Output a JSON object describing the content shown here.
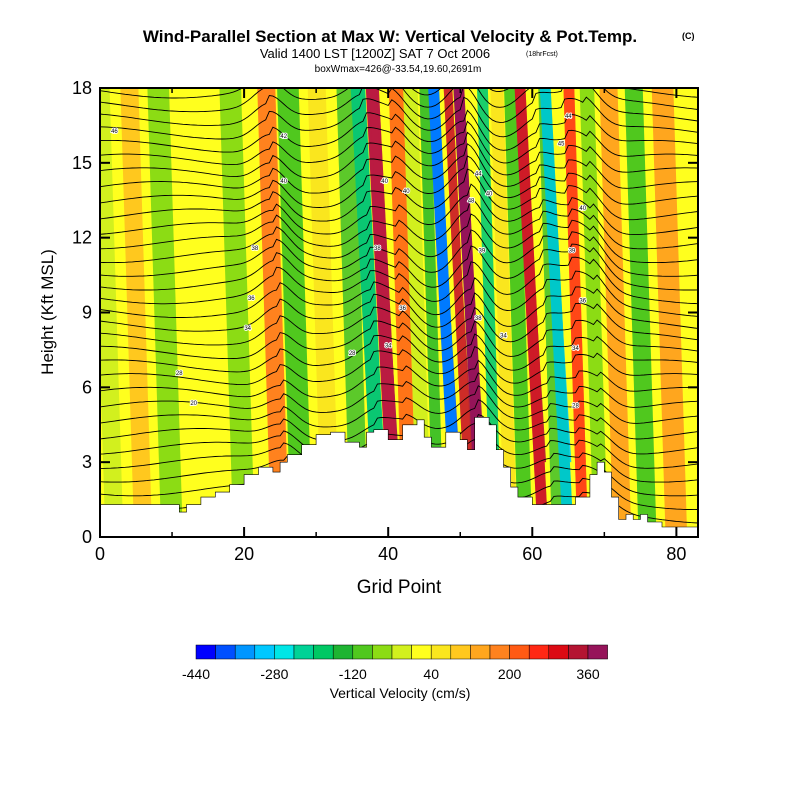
{
  "chart_data": {
    "type": "heatmap",
    "title": "Wind-Parallel Section at Max W: Vertical Velocity & Pot.Temp.",
    "title_unit": "(C)",
    "subtitle": "Valid 1400 LST [1200Z] SAT 7 Oct 2006",
    "subtitle_note": "(18hrFcst)",
    "subtitle2": "boxWmax=426@-33.54,19.60,2691m",
    "xlabel": "Grid Point",
    "ylabel": "Height (Kft MSL)",
    "xlim": [
      0,
      83
    ],
    "ylim": [
      0,
      18
    ],
    "x_ticks": [
      0,
      20,
      40,
      60,
      80
    ],
    "y_ticks": [
      0,
      3,
      6,
      9,
      12,
      15,
      18
    ],
    "terrain_kft": [
      [
        0,
        1.3
      ],
      [
        5,
        1.3
      ],
      [
        10,
        1.3
      ],
      [
        11,
        1.0
      ],
      [
        12,
        1.3
      ],
      [
        14,
        1.6
      ],
      [
        16,
        1.8
      ],
      [
        18,
        2.1
      ],
      [
        20,
        2.5
      ],
      [
        22,
        2.8
      ],
      [
        24,
        2.6
      ],
      [
        25,
        3.0
      ],
      [
        26,
        3.3
      ],
      [
        28,
        3.7
      ],
      [
        30,
        4.1
      ],
      [
        32,
        4.2
      ],
      [
        34,
        3.8
      ],
      [
        36,
        3.6
      ],
      [
        37,
        4.2
      ],
      [
        38,
        4.3
      ],
      [
        40,
        3.9
      ],
      [
        42,
        4.5
      ],
      [
        44,
        4.7
      ],
      [
        45,
        4.0
      ],
      [
        46,
        3.6
      ],
      [
        48,
        4.2
      ],
      [
        50,
        3.9
      ],
      [
        51,
        3.5
      ],
      [
        52,
        4.8
      ],
      [
        54,
        4.5
      ],
      [
        55,
        3.5
      ],
      [
        56,
        2.8
      ],
      [
        57,
        2.0
      ],
      [
        58,
        1.6
      ],
      [
        60,
        1.3
      ],
      [
        62,
        1.3
      ],
      [
        64,
        1.3
      ],
      [
        66,
        1.6
      ],
      [
        68,
        2.5
      ],
      [
        69,
        3.0
      ],
      [
        70,
        2.6
      ],
      [
        71,
        1.6
      ],
      [
        72,
        0.7
      ],
      [
        73,
        0.9
      ],
      [
        74,
        0.7
      ],
      [
        75,
        0.9
      ],
      [
        76,
        0.6
      ],
      [
        78,
        0.4
      ],
      [
        80,
        0.4
      ],
      [
        83,
        0.4
      ]
    ],
    "velocity_bands": [
      {
        "x": 2,
        "w": 2.5,
        "v": -60
      },
      {
        "x": 6,
        "w": 2.5,
        "v": 40
      },
      {
        "x": 10,
        "w": 3,
        "v": -90
      },
      {
        "x": 15,
        "w": 3,
        "v": -40
      },
      {
        "x": 20,
        "w": 3,
        "v": -120
      },
      {
        "x": 25,
        "w": 2.5,
        "v": 150
      },
      {
        "x": 28,
        "w": 3,
        "v": -150
      },
      {
        "x": 32,
        "w": 2.5,
        "v": 30
      },
      {
        "x": 36,
        "w": 2.5,
        "v": -180
      },
      {
        "x": 39,
        "w": 2,
        "v": -280
      },
      {
        "x": 41,
        "w": 1.8,
        "v": 330
      },
      {
        "x": 43,
        "w": 2,
        "v": 190
      },
      {
        "x": 45,
        "w": 2,
        "v": -60
      },
      {
        "x": 47,
        "w": 1.5,
        "v": -200
      },
      {
        "x": 49.5,
        "w": 1.5,
        "v": -440
      },
      {
        "x": 51.5,
        "w": 1.2,
        "v": 280
      },
      {
        "x": 53,
        "w": 1.5,
        "v": 420
      },
      {
        "x": 55,
        "w": 1.5,
        "v": -250
      },
      {
        "x": 57,
        "w": 1.8,
        "v": 20
      },
      {
        "x": 59,
        "w": 2,
        "v": -160
      },
      {
        "x": 61.5,
        "w": 1.5,
        "v": 300
      },
      {
        "x": 63.5,
        "w": 1.5,
        "v": -180
      },
      {
        "x": 65,
        "w": 1.5,
        "v": -330
      },
      {
        "x": 67,
        "w": 1.5,
        "v": 230
      },
      {
        "x": 69.5,
        "w": 2,
        "v": -110
      },
      {
        "x": 72.5,
        "w": 2.5,
        "v": 80
      },
      {
        "x": 76,
        "w": 2.5,
        "v": -130
      },
      {
        "x": 80,
        "w": 3,
        "v": 100
      }
    ],
    "theta_labels": [
      {
        "x": 2,
        "y": 16.2,
        "text": "46"
      },
      {
        "x": 25.5,
        "y": 16.0,
        "text": "42"
      },
      {
        "x": 25.5,
        "y": 14.2,
        "text": "40"
      },
      {
        "x": 21.5,
        "y": 11.5,
        "text": "38"
      },
      {
        "x": 21,
        "y": 9.5,
        "text": "36"
      },
      {
        "x": 20.5,
        "y": 8.3,
        "text": "34"
      },
      {
        "x": 11,
        "y": 6.5,
        "text": "28"
      },
      {
        "x": 13,
        "y": 5.3,
        "text": "20"
      },
      {
        "x": 35,
        "y": 7.3,
        "text": "28"
      },
      {
        "x": 39.5,
        "y": 14.2,
        "text": "40"
      },
      {
        "x": 42.5,
        "y": 13.8,
        "text": "40"
      },
      {
        "x": 38.5,
        "y": 11.5,
        "text": "38"
      },
      {
        "x": 42,
        "y": 9.1,
        "text": "36"
      },
      {
        "x": 40,
        "y": 7.6,
        "text": "34"
      },
      {
        "x": 52.5,
        "y": 14.5,
        "text": "44"
      },
      {
        "x": 51.5,
        "y": 13.4,
        "text": "48"
      },
      {
        "x": 54,
        "y": 13.7,
        "text": "40"
      },
      {
        "x": 53,
        "y": 11.4,
        "text": "39"
      },
      {
        "x": 52.5,
        "y": 8.7,
        "text": "38"
      },
      {
        "x": 56,
        "y": 8.0,
        "text": "34"
      },
      {
        "x": 65,
        "y": 16.8,
        "text": "44"
      },
      {
        "x": 64,
        "y": 15.7,
        "text": "45"
      },
      {
        "x": 67,
        "y": 13.1,
        "text": "40"
      },
      {
        "x": 65.5,
        "y": 11.4,
        "text": "39"
      },
      {
        "x": 67,
        "y": 9.4,
        "text": "36"
      },
      {
        "x": 66,
        "y": 7.5,
        "text": "34"
      },
      {
        "x": 66,
        "y": 5.2,
        "text": "28"
      }
    ],
    "colorbar": {
      "title": "Vertical Velocity (cm/s)",
      "tick_labels": [
        "-440",
        "-280",
        "-120",
        "40",
        "200",
        "360"
      ],
      "colors": [
        "#0000ff",
        "#0050ff",
        "#0096ff",
        "#00c8ff",
        "#00e6e6",
        "#00d296",
        "#00c864",
        "#1eb432",
        "#50c81e",
        "#8cdc14",
        "#d2f01e",
        "#ffff1e",
        "#fae61e",
        "#ffc81e",
        "#ffa61e",
        "#ff821e",
        "#ff5a14",
        "#ff2814",
        "#dc0a14",
        "#b41432",
        "#96145a"
      ]
    }
  }
}
